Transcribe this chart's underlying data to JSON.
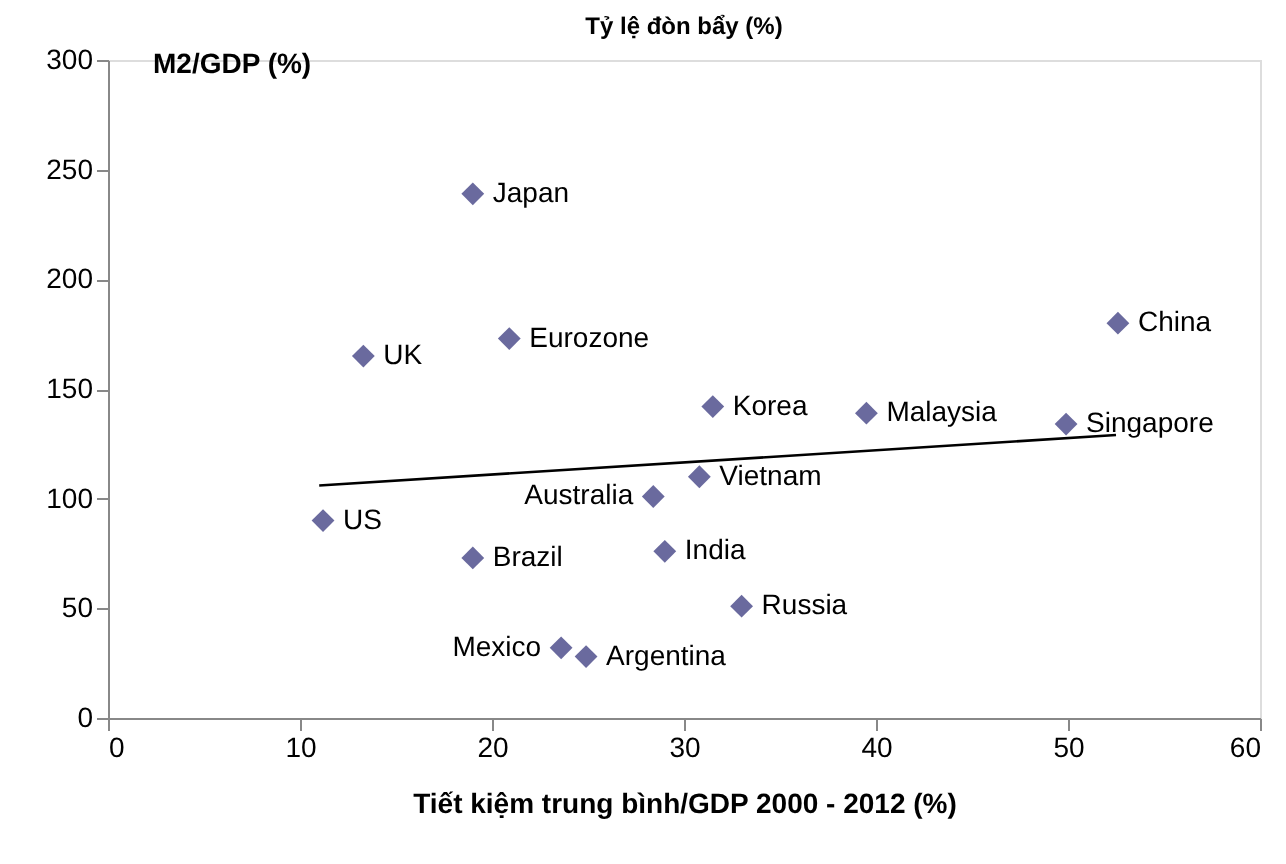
{
  "chart_data": {
    "type": "scatter",
    "title": "Tỷ lệ đòn bẩy (%)",
    "xlabel": "Tiết kiệm trung bình/GDP 2000 - 2012 (%)",
    "ylabel": "M2/GDP (%)",
    "xlim": [
      0,
      60
    ],
    "xticks": [
      0,
      10,
      20,
      30,
      40,
      50,
      60
    ],
    "ylim": [
      0,
      300
    ],
    "yticks": [
      0,
      50,
      100,
      150,
      200,
      250,
      300
    ],
    "grid": false,
    "series": [
      {
        "marker": "diamond",
        "color": "#6a6a9e",
        "x": [
          19.0,
          13.3,
          20.9,
          11.2,
          19.0,
          28.4,
          23.6,
          24.9,
          29.0,
          30.8,
          31.5,
          39.5,
          49.9,
          52.6,
          33.0
        ],
        "values": [
          239,
          165,
          173,
          90,
          73,
          101,
          32,
          28,
          76,
          110,
          142,
          139,
          134,
          180,
          51
        ]
      },
      {
        "type": "line",
        "color": "#000000",
        "x": [
          11,
          52.5
        ],
        "values": [
          106,
          129
        ]
      }
    ],
    "annotations": [
      {
        "text": "Japan",
        "x": 19.0,
        "y": 239
      },
      {
        "text": "UK",
        "x": 13.3,
        "y": 165
      },
      {
        "text": "Eurozone",
        "x": 20.9,
        "y": 173
      },
      {
        "text": "US",
        "x": 11.2,
        "y": 90
      },
      {
        "text": "Brazil",
        "x": 19.0,
        "y": 73
      },
      {
        "text": "Australia",
        "x": 28.4,
        "y": 101
      },
      {
        "text": "Mexico",
        "x": 23.6,
        "y": 32
      },
      {
        "text": "Argentina",
        "x": 24.9,
        "y": 28
      },
      {
        "text": "India",
        "x": 29.0,
        "y": 76
      },
      {
        "text": "Vietnam",
        "x": 30.8,
        "y": 110
      },
      {
        "text": "Korea",
        "x": 31.5,
        "y": 142
      },
      {
        "text": "Malaysia",
        "x": 39.5,
        "y": 139
      },
      {
        "text": "Singapore",
        "x": 49.9,
        "y": 134
      },
      {
        "text": "China",
        "x": 52.6,
        "y": 180
      },
      {
        "text": "Russia",
        "x": 33.0,
        "y": 51
      }
    ]
  }
}
